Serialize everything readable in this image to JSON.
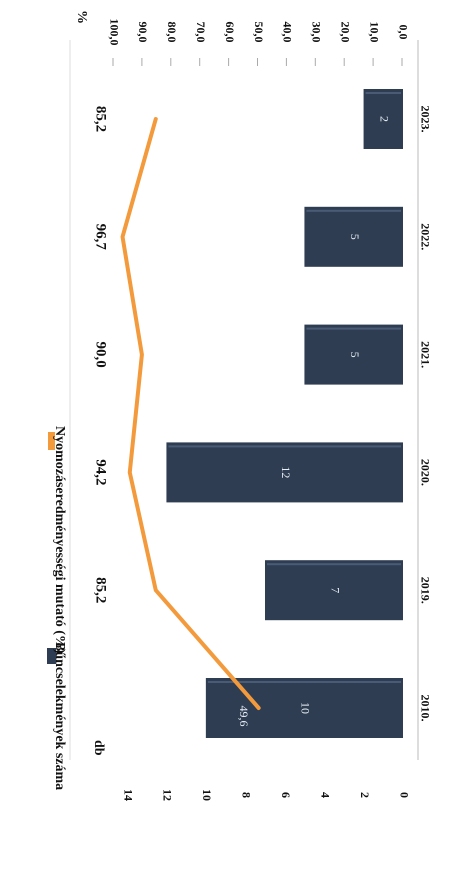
{
  "chart_data": {
    "type": "bar",
    "categories": [
      "2010.",
      "2019.",
      "2020.",
      "2021.",
      "2022.",
      "2023."
    ],
    "series": [
      {
        "name": "Bűncselekmények száma",
        "type": "bar",
        "axis": "left",
        "values": [
          10,
          7,
          12,
          5,
          5,
          2
        ],
        "value_labels": [
          "10",
          "7",
          "12",
          "5",
          "5",
          "2"
        ],
        "color": "#2e3d52"
      },
      {
        "name": "Nyomozáseredményességi mutató (%)",
        "type": "line",
        "axis": "right",
        "values": [
          49.6,
          85.2,
          94.2,
          90.0,
          96.7,
          85.2
        ],
        "value_labels": [
          "49,6",
          "85,2",
          "94,2",
          "90,0",
          "96,7",
          "85,2"
        ],
        "color": "#f39a3c"
      }
    ],
    "left_axis": {
      "unit_label": "db",
      "range": [
        0,
        14
      ],
      "ticks": [
        "0",
        "2",
        "4",
        "6",
        "8",
        "10",
        "12",
        "14"
      ]
    },
    "right_axis": {
      "unit_label": "%",
      "range": [
        0,
        100
      ],
      "ticks": [
        "0,0",
        "10,0",
        "20,0",
        "30,0",
        "40,0",
        "50,0",
        "60,0",
        "70,0",
        "80,0",
        "90,0",
        "100,0"
      ]
    },
    "orientation": "rotated-90-clockwise",
    "legend_position": "top"
  }
}
